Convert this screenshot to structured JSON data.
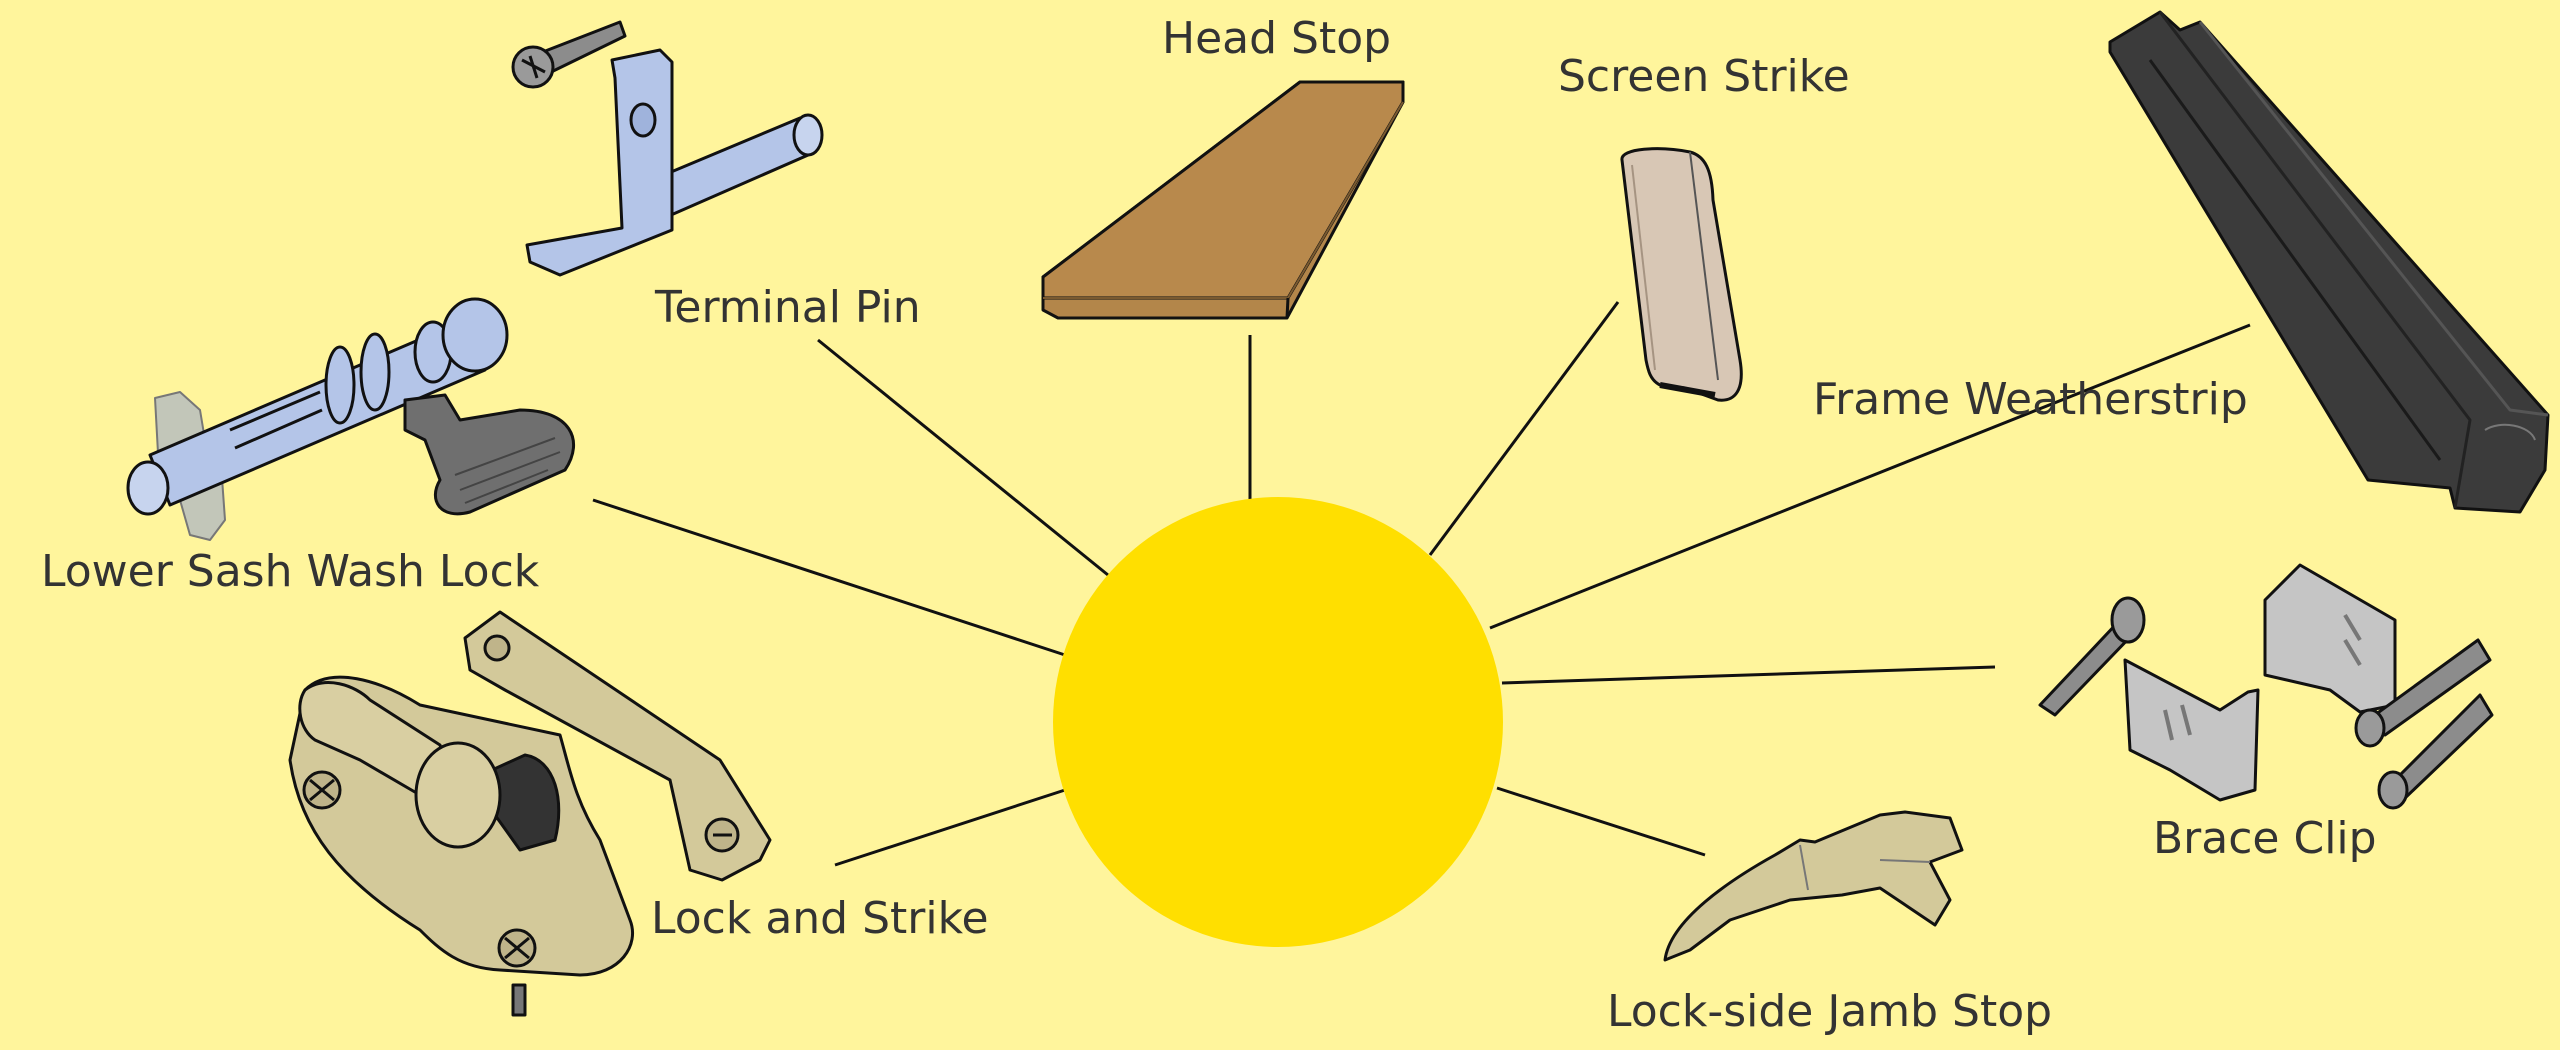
{
  "colors": {
    "background": "#fff59c",
    "hub": "#ffdf00",
    "line": "#111111",
    "label_text": "#333333",
    "wood": "#b3864a",
    "black_rubber": "#3b3b3b",
    "blue_metal": "#b4c5e8",
    "beige_metal": "#d7c9a8",
    "tan_metal": "#d3c99a",
    "gray_metal": "#c5c5c5"
  },
  "labels": {
    "head_stop": "Head Stop",
    "screen_strike": "Screen Strike",
    "terminal_pin": "Terminal Pin",
    "frame_weatherstrip": "Frame Weatherstrip",
    "lower_sash_wash_lock": "Lower Sash Wash Lock",
    "lock_and_strike": "Lock and Strike",
    "brace_clip": "Brace Clip",
    "lock_side_jamb_stop": "Lock-side Jamb Stop"
  },
  "icons": {
    "head_stop": "wood-block-icon",
    "screen_strike": "screen-strike-icon",
    "terminal_pin": "terminal-pin-icon",
    "frame_weatherstrip": "weatherstrip-icon",
    "lower_sash_wash_lock": "wash-lock-icon",
    "lock_and_strike": "sash-lock-icon",
    "brace_clip": "brace-clip-icon",
    "lock_side_jamb_stop": "jamb-stop-icon"
  }
}
